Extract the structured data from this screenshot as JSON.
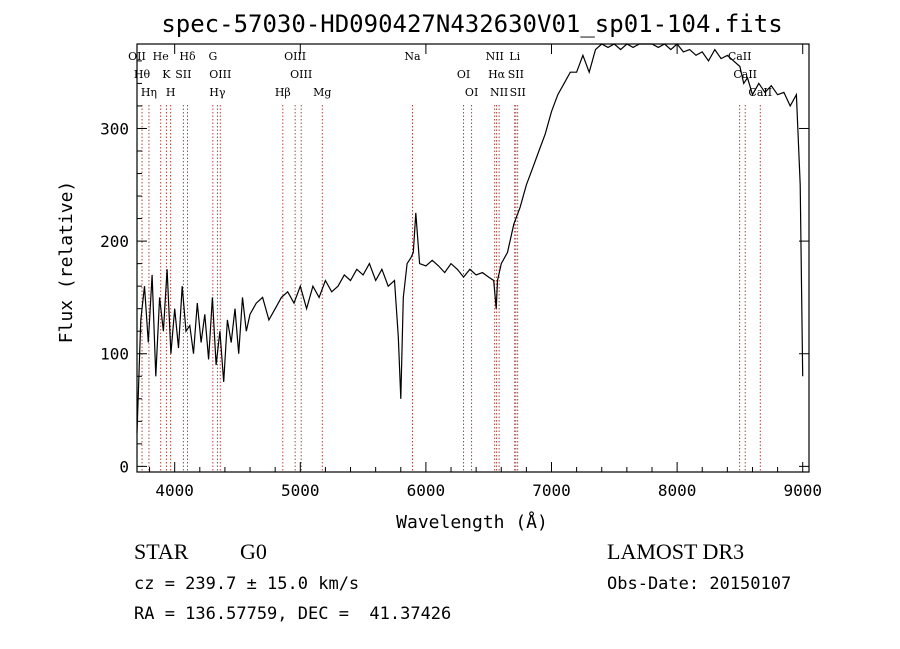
{
  "chart_data": {
    "type": "line",
    "title": "spec-57030-HD090427N432630V01_sp01-104.fits",
    "xlabel": "Wavelength (Å)",
    "ylabel": "Flux (relative)",
    "xlim": [
      3700,
      9050
    ],
    "ylim": [
      -5,
      375
    ],
    "xticks": [
      4000,
      5000,
      6000,
      7000,
      8000,
      9000
    ],
    "yticks": [
      0,
      100,
      200,
      300
    ],
    "grid": false,
    "series": [
      {
        "x": [
          3700,
          3730,
          3760,
          3790,
          3820,
          3850,
          3880,
          3910,
          3940,
          3970,
          4000,
          4030,
          4060,
          4090,
          4120,
          4150,
          4180,
          4210,
          4240,
          4270,
          4300,
          4330,
          4360,
          4390,
          4420,
          4450,
          4480,
          4510,
          4540,
          4570,
          4600,
          4650,
          4700,
          4750,
          4800,
          4850,
          4900,
          4950,
          5000,
          5050,
          5100,
          5150,
          5200,
          5250,
          5300,
          5350,
          5400,
          5450,
          5500,
          5550,
          5600,
          5650,
          5700,
          5750,
          5780,
          5800,
          5820,
          5850,
          5880,
          5900,
          5920,
          5950,
          6000,
          6050,
          6100,
          6150,
          6200,
          6250,
          6300,
          6350,
          6400,
          6450,
          6500,
          6540,
          6560,
          6570,
          6600,
          6650,
          6700,
          6750,
          6800,
          6850,
          6900,
          6950,
          7000,
          7050,
          7100,
          7150,
          7200,
          7250,
          7300,
          7350,
          7400,
          7450,
          7500,
          7550,
          7600,
          7650,
          7700,
          7750,
          7800,
          7850,
          7900,
          7950,
          8000,
          8050,
          8100,
          8150,
          8200,
          8250,
          8300,
          8350,
          8400,
          8450,
          8500,
          8530,
          8560,
          8600,
          8650,
          8700,
          8750,
          8800,
          8850,
          8900,
          8950,
          8980,
          9000
        ],
        "y": [
          30,
          130,
          160,
          110,
          170,
          80,
          150,
          120,
          175,
          100,
          140,
          105,
          160,
          120,
          125,
          100,
          145,
          110,
          135,
          95,
          150,
          90,
          120,
          75,
          130,
          110,
          140,
          100,
          150,
          120,
          135,
          145,
          150,
          130,
          140,
          150,
          155,
          145,
          160,
          140,
          160,
          150,
          165,
          155,
          160,
          170,
          165,
          175,
          170,
          180,
          165,
          175,
          160,
          165,
          115,
          60,
          150,
          180,
          185,
          190,
          225,
          180,
          178,
          183,
          178,
          172,
          180,
          175,
          168,
          175,
          170,
          172,
          168,
          165,
          140,
          165,
          180,
          190,
          215,
          230,
          250,
          265,
          280,
          295,
          315,
          330,
          340,
          350,
          350,
          365,
          350,
          370,
          380,
          372,
          378,
          370,
          380,
          372,
          380,
          375,
          378,
          372,
          380,
          370,
          375,
          368,
          370,
          365,
          368,
          360,
          370,
          362,
          365,
          360,
          355,
          340,
          345,
          330,
          340,
          332,
          338,
          330,
          332,
          320,
          330,
          250,
          80
        ]
      }
    ],
    "lines": {
      "row1": [
        {
          "x": 3700,
          "label": "OII"
        },
        {
          "x": 3740,
          "label": "Hθ"
        },
        {
          "x": 3795,
          "label": "Hη"
        },
        {
          "x": 3889,
          "label": "He"
        },
        {
          "x": 3934,
          "label": "K"
        },
        {
          "x": 3968,
          "label": "H"
        },
        {
          "x": 4102,
          "label": "Hδ"
        },
        {
          "x": 4069,
          "label": "SII"
        },
        {
          "x": 4340,
          "label": "Hγ"
        },
        {
          "x": 4304,
          "label": "G"
        },
        {
          "x": 4363,
          "label": "OIII"
        },
        {
          "x": 4861,
          "label": "Hβ"
        },
        {
          "x": 4959,
          "label": "OIII"
        },
        {
          "x": 5007,
          "label": "OIII"
        },
        {
          "x": 5175,
          "label": "Mg"
        },
        {
          "x": 5893,
          "label": "Na"
        },
        {
          "x": 6300,
          "label": "OI"
        },
        {
          "x": 6364,
          "label": "OI"
        },
        {
          "x": 6548,
          "label": "NII"
        },
        {
          "x": 6563,
          "label": "Hα"
        },
        {
          "x": 6583,
          "label": "NII"
        },
        {
          "x": 6707,
          "label": "Li"
        },
        {
          "x": 6716,
          "label": "SII"
        },
        {
          "x": 6731,
          "label": "SII"
        },
        {
          "x": 8498,
          "label": "CaII"
        },
        {
          "x": 8542,
          "label": "CaII"
        },
        {
          "x": 8662,
          "label": "CaII"
        }
      ]
    }
  },
  "footer": {
    "object_class": "STAR",
    "subclass": "G0",
    "cz": "cz = 239.7 ± 15.0 km/s",
    "survey": "LAMOST DR3",
    "obs_date": "Obs-Date: 20150107",
    "coords": "RA = 136.57759, DEC =  41.37426"
  }
}
